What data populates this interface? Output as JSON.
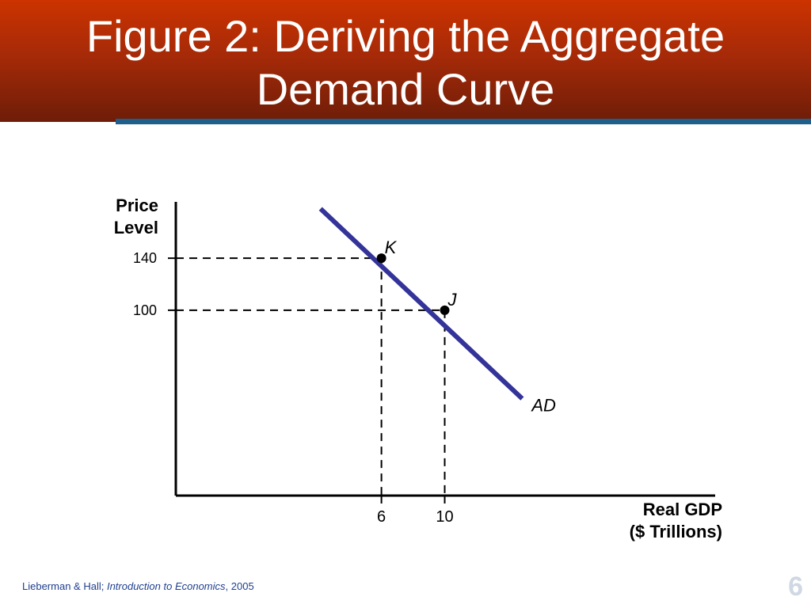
{
  "slide": {
    "title_line1": "Figure 2:  Deriving the Aggregate",
    "title_line2": "Demand Curve",
    "footer_authors": "Lieberman & Hall; ",
    "footer_book": "Introduction to Economics",
    "footer_year": ", 2005",
    "page_number": "6"
  },
  "colors": {
    "banner_top": "#cc3300",
    "banner_bottom": "#6e1d08",
    "rule_bar": "#1f5f8b",
    "curve": "#333399",
    "footer_text": "#1f3f8f"
  },
  "chart_data": {
    "type": "line",
    "title": "Figure 2:  Deriving the Aggregate Demand Curve",
    "ylabel_lines": [
      "Price",
      "Level"
    ],
    "xlabel_lines": [
      "Real GDP",
      "($ Trillions)"
    ],
    "x_ticks": [
      {
        "value": 6,
        "label": "6"
      },
      {
        "value": 10,
        "label": "10"
      }
    ],
    "y_ticks": [
      {
        "value": 140,
        "label": "140"
      },
      {
        "value": 100,
        "label": "100"
      }
    ],
    "xlim": [
      -7,
      27.1
    ],
    "ylim": [
      -42.5,
      183.3
    ],
    "grid": false,
    "series": [
      {
        "name": "AD",
        "x": [
          2.15,
          14.9
        ],
        "y": [
          178,
          32
        ],
        "points": [
          {
            "label": "K",
            "x": 6,
            "y": 140
          },
          {
            "label": "J",
            "x": 10,
            "y": 100
          }
        ]
      }
    ]
  }
}
